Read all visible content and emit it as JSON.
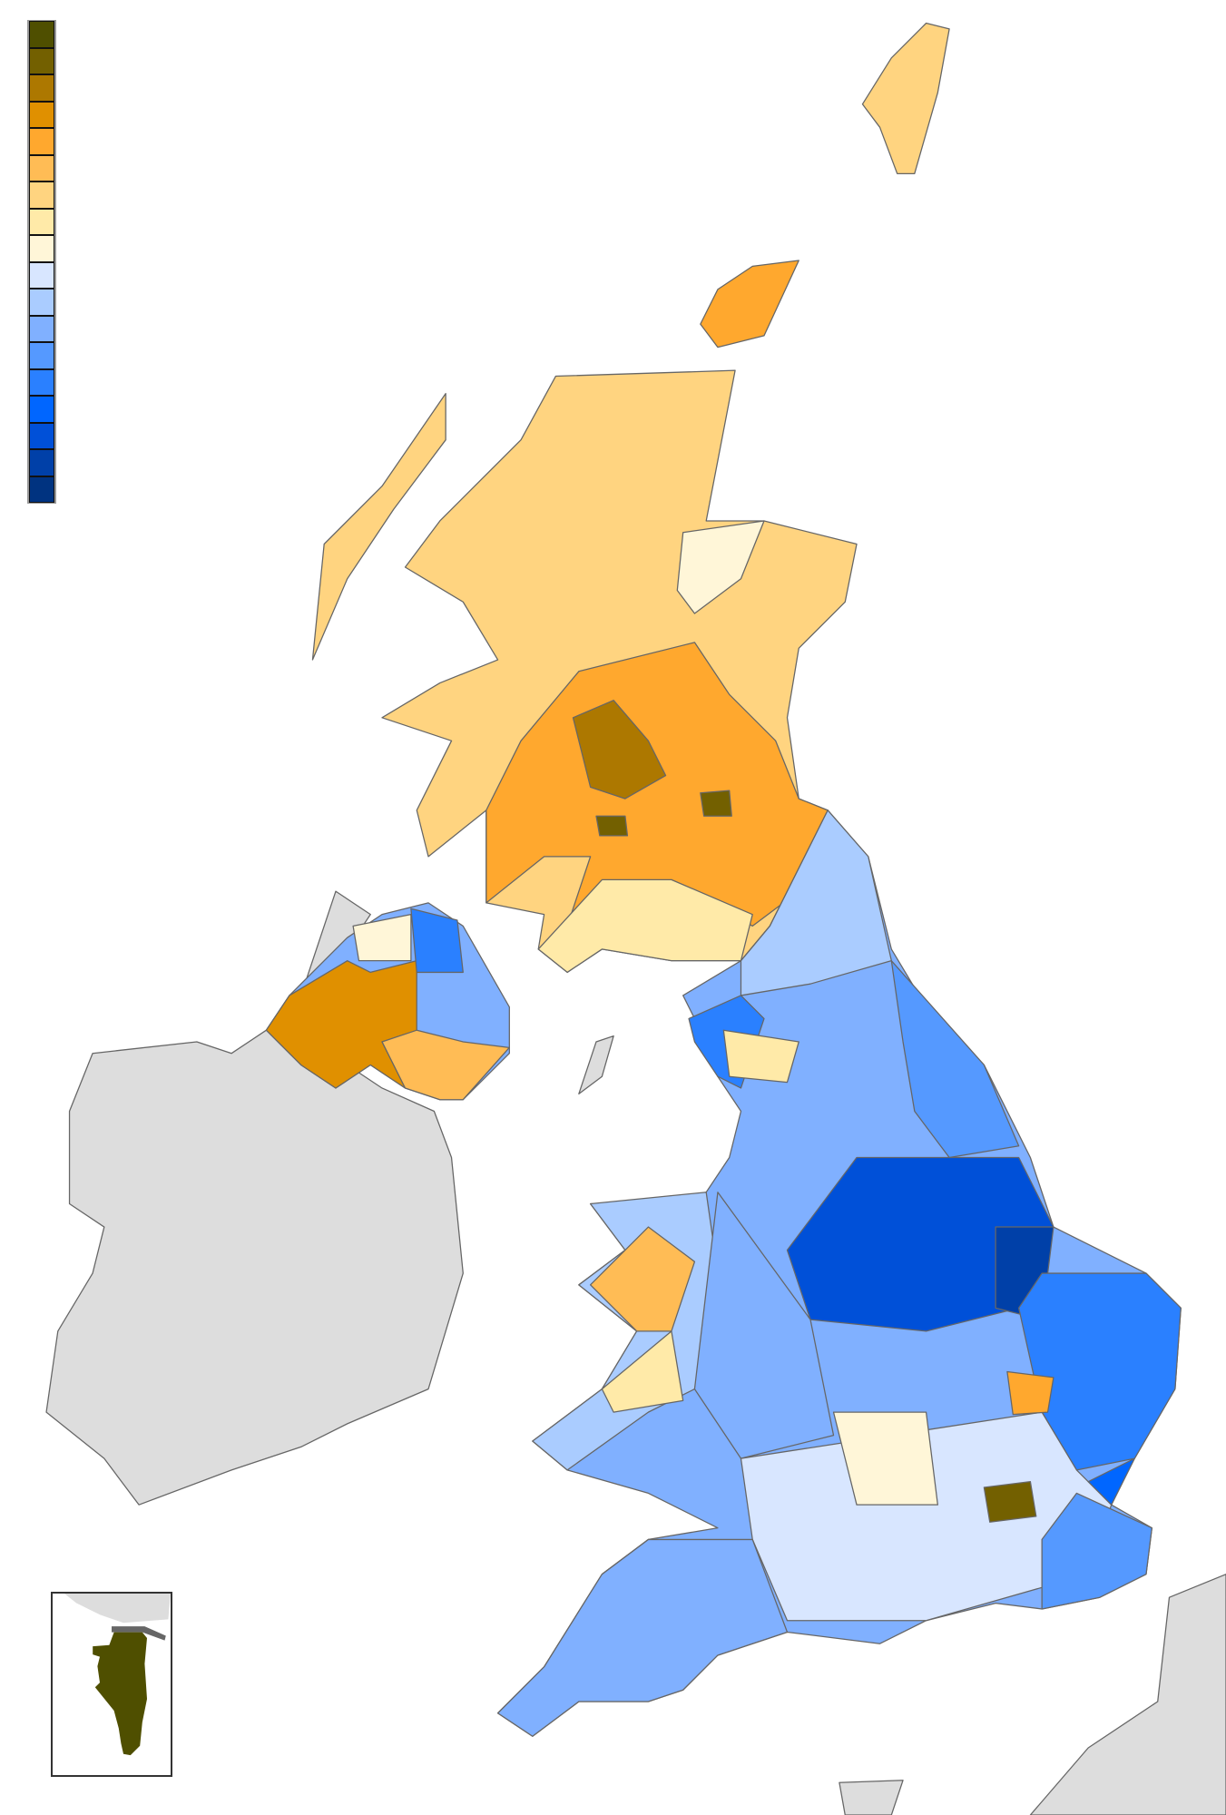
{
  "legend": {
    "colors": [
      "#4f4f00",
      "#736000",
      "#ad7800",
      "#e09000",
      "#ffa82e",
      "#ffbc55",
      "#ffd480",
      "#ffeaa8",
      "#fff6d8",
      "#d8e6ff",
      "#aaccff",
      "#80b0ff",
      "#5599ff",
      "#2a80ff",
      "#0066ff",
      "#0050d8",
      "#0040a8",
      "#003380"
    ]
  },
  "map": {
    "foreign_land_color": "#dddddd",
    "border_color": "#666666",
    "sea_color": "#ffffff"
  },
  "inset": {
    "region_color": "#4f4f00",
    "neighbour_color": "#dddddd",
    "frontier_color": "#666666"
  }
}
